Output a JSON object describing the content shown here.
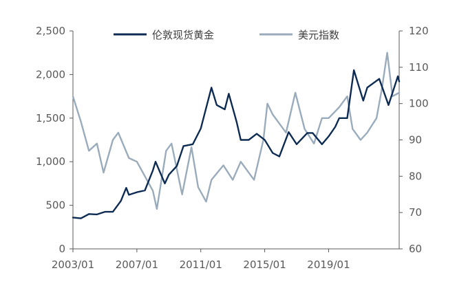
{
  "chart_data": {
    "type": "line",
    "x_tick_labels": [
      "2003/01",
      "2007/01",
      "2011/01",
      "2015/01",
      "2019/01"
    ],
    "x_range": [
      "2003/01",
      "2023/06"
    ],
    "y_left": {
      "range": [
        0,
        2500
      ],
      "ticks": [
        0,
        500,
        1000,
        1500,
        2000,
        2500
      ],
      "tick_labels": [
        "0",
        "500",
        "1,000",
        "1,500",
        "2,000",
        "2,500"
      ]
    },
    "y_right": {
      "range": [
        60,
        120
      ],
      "ticks": [
        60,
        70,
        80,
        90,
        100,
        110,
        120
      ],
      "tick_labels": [
        "60",
        "70",
        "80",
        "90",
        "100",
        "110",
        "120"
      ]
    },
    "grid": false,
    "legend_position": "top",
    "series": [
      {
        "name": "伦敦现货黄金",
        "axis": "left",
        "color": "#0d2b52",
        "points": [
          [
            "2003/01",
            360
          ],
          [
            "2003/07",
            350
          ],
          [
            "2004/01",
            400
          ],
          [
            "2004/07",
            395
          ],
          [
            "2005/01",
            425
          ],
          [
            "2005/07",
            425
          ],
          [
            "2006/01",
            550
          ],
          [
            "2006/05",
            700
          ],
          [
            "2006/07",
            620
          ],
          [
            "2007/01",
            650
          ],
          [
            "2007/07",
            670
          ],
          [
            "2008/01",
            900
          ],
          [
            "2008/03",
            1000
          ],
          [
            "2008/10",
            750
          ],
          [
            "2009/01",
            850
          ],
          [
            "2009/07",
            950
          ],
          [
            "2009/12",
            1180
          ],
          [
            "2010/07",
            1200
          ],
          [
            "2011/01",
            1380
          ],
          [
            "2011/09",
            1850
          ],
          [
            "2012/01",
            1650
          ],
          [
            "2012/07",
            1600
          ],
          [
            "2012/10",
            1780
          ],
          [
            "2013/04",
            1450
          ],
          [
            "2013/07",
            1250
          ],
          [
            "2014/01",
            1250
          ],
          [
            "2014/07",
            1320
          ],
          [
            "2015/01",
            1250
          ],
          [
            "2015/07",
            1100
          ],
          [
            "2015/12",
            1060
          ],
          [
            "2016/07",
            1340
          ],
          [
            "2017/01",
            1200
          ],
          [
            "2017/09",
            1330
          ],
          [
            "2018/01",
            1330
          ],
          [
            "2018/08",
            1200
          ],
          [
            "2019/01",
            1290
          ],
          [
            "2019/06",
            1400
          ],
          [
            "2019/09",
            1500
          ],
          [
            "2020/03",
            1500
          ],
          [
            "2020/08",
            2050
          ],
          [
            "2021/03",
            1700
          ],
          [
            "2021/06",
            1850
          ],
          [
            "2022/03",
            1950
          ],
          [
            "2022/10",
            1650
          ],
          [
            "2023/05",
            1980
          ],
          [
            "2023/06",
            1920
          ]
        ]
      },
      {
        "name": "美元指数",
        "axis": "right",
        "color": "#9aabbc",
        "points": [
          [
            "2003/01",
            102
          ],
          [
            "2003/07",
            95
          ],
          [
            "2004/01",
            87
          ],
          [
            "2004/07",
            89
          ],
          [
            "2004/12",
            81
          ],
          [
            "2005/07",
            90
          ],
          [
            "2005/11",
            92
          ],
          [
            "2006/07",
            85
          ],
          [
            "2007/01",
            84
          ],
          [
            "2007/07",
            80
          ],
          [
            "2008/01",
            76
          ],
          [
            "2008/04",
            71
          ],
          [
            "2008/11",
            87
          ],
          [
            "2009/03",
            89
          ],
          [
            "2009/11",
            75
          ],
          [
            "2010/06",
            88
          ],
          [
            "2010/11",
            77
          ],
          [
            "2011/05",
            73
          ],
          [
            "2011/09",
            79
          ],
          [
            "2012/06",
            83
          ],
          [
            "2013/01",
            79
          ],
          [
            "2013/07",
            84
          ],
          [
            "2014/05",
            79
          ],
          [
            "2014/12",
            90
          ],
          [
            "2015/03",
            100
          ],
          [
            "2015/07",
            97
          ],
          [
            "2016/05",
            92
          ],
          [
            "2016/12",
            103
          ],
          [
            "2017/07",
            93
          ],
          [
            "2018/02",
            89
          ],
          [
            "2018/08",
            96
          ],
          [
            "2019/01",
            96
          ],
          [
            "2019/09",
            99
          ],
          [
            "2020/03",
            102
          ],
          [
            "2020/07",
            93
          ],
          [
            "2021/01",
            90
          ],
          [
            "2021/06",
            92
          ],
          [
            "2022/01",
            96
          ],
          [
            "2022/05",
            104
          ],
          [
            "2022/09",
            114
          ],
          [
            "2023/01",
            102
          ],
          [
            "2023/06",
            103
          ]
        ]
      }
    ]
  }
}
